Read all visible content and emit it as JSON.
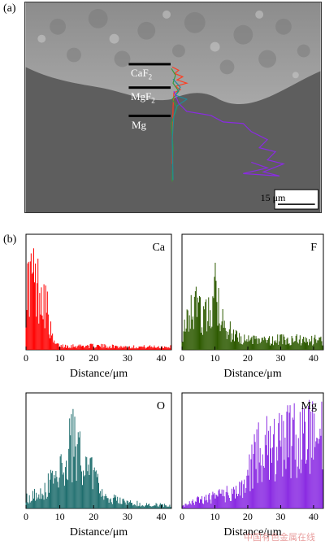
{
  "panel_a": {
    "label": "(a)",
    "layers": [
      {
        "main": "CaF",
        "sub": "2"
      },
      {
        "main": "MgF",
        "sub": "2"
      },
      {
        "main": "Mg",
        "sub": ""
      }
    ],
    "scale_bar": "15 μm"
  },
  "panel_b": {
    "label": "(b)"
  },
  "watermark": "中国有色金属在线",
  "chart_data": [
    {
      "type": "bar",
      "element": "Ca",
      "color": "#ff0000",
      "xlabel": "Distance/μm",
      "xticks": [
        0,
        10,
        20,
        30,
        40
      ],
      "xlim": [
        0,
        43
      ],
      "profile": [
        [
          0,
          0.55
        ],
        [
          1,
          0.7
        ],
        [
          2,
          0.75
        ],
        [
          3,
          0.6
        ],
        [
          4,
          0.65
        ],
        [
          5,
          0.6
        ],
        [
          6,
          0.45
        ],
        [
          7,
          0.25
        ],
        [
          8,
          0.08
        ],
        [
          9,
          0.05
        ],
        [
          10,
          0.04
        ],
        [
          15,
          0.04
        ],
        [
          20,
          0.04
        ],
        [
          30,
          0.03
        ],
        [
          40,
          0.03
        ],
        [
          43,
          0.03
        ]
      ]
    },
    {
      "type": "bar",
      "element": "F",
      "color": "#2d5a00",
      "xlabel": "Distance/μm",
      "xticks": [
        0,
        10,
        20,
        30,
        40
      ],
      "xlim": [
        0,
        43
      ],
      "profile": [
        [
          0,
          0.15
        ],
        [
          2,
          0.3
        ],
        [
          4,
          0.45
        ],
        [
          6,
          0.35
        ],
        [
          8,
          0.35
        ],
        [
          10,
          0.6
        ],
        [
          11,
          0.55
        ],
        [
          12,
          0.35
        ],
        [
          14,
          0.2
        ],
        [
          16,
          0.15
        ],
        [
          20,
          0.1
        ],
        [
          30,
          0.1
        ],
        [
          40,
          0.1
        ],
        [
          43,
          0.1
        ]
      ]
    },
    {
      "type": "bar",
      "element": "O",
      "color": "#1f6e6e",
      "xlabel": "Distance/μm",
      "xticks": [
        0,
        10,
        20,
        30,
        40
      ],
      "xlim": [
        0,
        43
      ],
      "profile": [
        [
          0,
          0.1
        ],
        [
          5,
          0.18
        ],
        [
          8,
          0.3
        ],
        [
          10,
          0.45
        ],
        [
          12,
          0.55
        ],
        [
          14,
          0.65
        ],
        [
          16,
          0.55
        ],
        [
          18,
          0.45
        ],
        [
          20,
          0.35
        ],
        [
          22,
          0.2
        ],
        [
          25,
          0.1
        ],
        [
          30,
          0.06
        ],
        [
          35,
          0.04
        ],
        [
          43,
          0.03
        ]
      ]
    },
    {
      "type": "bar",
      "element": "Mg",
      "color": "#8a2be2",
      "xlabel": "Distance/μm",
      "xticks": [
        0,
        10,
        20,
        30,
        40
      ],
      "xlim": [
        0,
        43
      ],
      "profile": [
        [
          0,
          0.02
        ],
        [
          5,
          0.08
        ],
        [
          10,
          0.12
        ],
        [
          15,
          0.16
        ],
        [
          18,
          0.22
        ],
        [
          20,
          0.28
        ],
        [
          21,
          0.45
        ],
        [
          23,
          0.55
        ],
        [
          26,
          0.6
        ],
        [
          30,
          0.65
        ],
        [
          34,
          0.7
        ],
        [
          37,
          0.75
        ],
        [
          40,
          0.72
        ],
        [
          43,
          0.7
        ]
      ]
    }
  ]
}
